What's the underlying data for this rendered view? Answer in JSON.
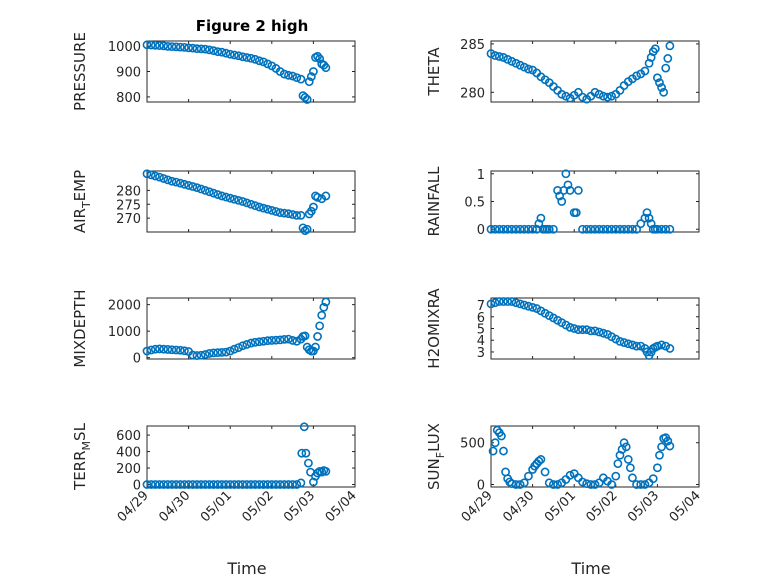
{
  "figure_title": "Figure 2 high",
  "marker_color": "#0072BD",
  "chart_data": [
    {
      "type": "scatter",
      "ylabel": "PRESSURE",
      "xlabel": "",
      "xlim": [
        0,
        5
      ],
      "xticks": [
        0,
        1,
        2,
        3,
        4,
        5
      ],
      "ylim": [
        780,
        1020
      ],
      "yticks": [
        800,
        900,
        1000
      ],
      "ytick_labels": [
        "800",
        "900",
        "1000"
      ],
      "x": [
        0,
        0.1,
        0.2,
        0.3,
        0.4,
        0.5,
        0.6,
        0.7,
        0.8,
        0.9,
        1.0,
        1.1,
        1.2,
        1.3,
        1.4,
        1.5,
        1.6,
        1.7,
        1.8,
        1.9,
        2.0,
        2.1,
        2.2,
        2.3,
        2.4,
        2.5,
        2.6,
        2.7,
        2.8,
        2.9,
        3.0,
        3.1,
        3.2,
        3.3,
        3.4,
        3.5,
        3.6,
        3.7,
        3.75,
        3.8,
        3.85,
        3.9,
        3.95,
        4.0,
        4.05,
        4.1,
        4.15,
        4.2,
        4.25,
        4.3
      ],
      "y": [
        1005,
        1004,
        1003,
        1002,
        1001,
        999,
        998,
        997,
        996,
        995,
        993,
        992,
        990,
        989,
        988,
        985,
        982,
        978,
        976,
        972,
        968,
        965,
        962,
        958,
        955,
        952,
        948,
        942,
        938,
        930,
        922,
        912,
        900,
        890,
        885,
        882,
        876,
        870,
        805,
        798,
        790,
        860,
        880,
        900,
        955,
        960,
        950,
        930,
        925,
        915
      ]
    },
    {
      "type": "scatter",
      "ylabel": "THETA",
      "xlabel": "",
      "xlim": [
        0,
        5
      ],
      "xticks": [
        0,
        1,
        2,
        3,
        4,
        5
      ],
      "ylim": [
        279,
        285.3
      ],
      "yticks": [
        280,
        285
      ],
      "ytick_labels": [
        "280",
        "285"
      ],
      "x": [
        0,
        0.1,
        0.2,
        0.3,
        0.4,
        0.5,
        0.6,
        0.7,
        0.8,
        0.9,
        1.0,
        1.1,
        1.2,
        1.3,
        1.4,
        1.5,
        1.6,
        1.7,
        1.8,
        1.9,
        2.0,
        2.1,
        2.2,
        2.3,
        2.4,
        2.5,
        2.6,
        2.7,
        2.8,
        2.9,
        3.0,
        3.1,
        3.2,
        3.3,
        3.4,
        3.5,
        3.6,
        3.7,
        3.8,
        3.85,
        3.9,
        3.95,
        4.0,
        4.05,
        4.1,
        4.15,
        4.2,
        4.25,
        4.3
      ],
      "y": [
        284.0,
        283.8,
        283.7,
        283.6,
        283.4,
        283.2,
        283.0,
        282.8,
        282.6,
        282.4,
        282.3,
        282.0,
        281.6,
        281.3,
        281.0,
        280.6,
        280.2,
        279.8,
        279.6,
        279.4,
        279.7,
        280.0,
        279.5,
        279.3,
        279.6,
        280.0,
        279.8,
        279.6,
        279.5,
        279.6,
        279.8,
        280.2,
        280.7,
        281.1,
        281.4,
        281.7,
        281.9,
        282.2,
        283.0,
        283.6,
        284.2,
        284.5,
        281.5,
        281.0,
        280.5,
        280.0,
        282.5,
        283.5,
        284.8
      ]
    },
    {
      "type": "scatter",
      "ylabel_main": "AIR",
      "ylabel_sub": "T",
      "ylabel_rest": "EMP",
      "xlabel": "",
      "xlim": [
        0,
        5
      ],
      "xticks": [
        0,
        1,
        2,
        3,
        4,
        5
      ],
      "ylim": [
        265,
        287
      ],
      "yticks": [
        270,
        275,
        280
      ],
      "ytick_labels": [
        "270",
        "275",
        "280"
      ],
      "x": [
        0,
        0.1,
        0.2,
        0.3,
        0.4,
        0.5,
        0.6,
        0.7,
        0.8,
        0.9,
        1.0,
        1.1,
        1.2,
        1.3,
        1.4,
        1.5,
        1.6,
        1.7,
        1.8,
        1.9,
        2.0,
        2.1,
        2.2,
        2.3,
        2.4,
        2.5,
        2.6,
        2.7,
        2.8,
        2.9,
        3.0,
        3.1,
        3.2,
        3.3,
        3.4,
        3.5,
        3.6,
        3.7,
        3.75,
        3.8,
        3.85,
        3.9,
        3.95,
        4.0,
        4.05,
        4.1,
        4.2,
        4.3
      ],
      "y": [
        286.0,
        285.6,
        285.2,
        284.8,
        284.3,
        283.8,
        283.3,
        283.0,
        282.6,
        282.2,
        281.8,
        281.4,
        281.0,
        280.5,
        280.0,
        279.5,
        279.0,
        278.5,
        278.0,
        277.6,
        277.2,
        276.8,
        276.4,
        276.0,
        275.5,
        275.0,
        274.5,
        274.0,
        273.6,
        273.2,
        272.8,
        272.4,
        272.0,
        271.8,
        271.6,
        271.3,
        271.0,
        271.0,
        266.5,
        265.5,
        266.0,
        271.5,
        272.5,
        274.0,
        278.0,
        277.5,
        277.0,
        278.0
      ]
    },
    {
      "type": "scatter",
      "ylabel": "RAINFALL",
      "xlabel": "",
      "xlim": [
        0,
        5
      ],
      "xticks": [
        0,
        1,
        2,
        3,
        4,
        5
      ],
      "ylim": [
        -0.05,
        1.05
      ],
      "yticks": [
        0,
        0.5,
        1
      ],
      "ytick_labels": [
        "0",
        "0.5",
        "1"
      ],
      "x": [
        0,
        0.1,
        0.2,
        0.3,
        0.4,
        0.5,
        0.6,
        0.7,
        0.8,
        0.9,
        1.0,
        1.1,
        1.15,
        1.2,
        1.25,
        1.3,
        1.35,
        1.4,
        1.5,
        1.6,
        1.65,
        1.7,
        1.75,
        1.8,
        1.85,
        1.9,
        2.0,
        2.05,
        2.1,
        2.2,
        2.3,
        2.4,
        2.5,
        2.6,
        2.7,
        2.8,
        2.9,
        3.0,
        3.1,
        3.2,
        3.3,
        3.4,
        3.5,
        3.6,
        3.7,
        3.75,
        3.8,
        3.85,
        3.9,
        3.95,
        4.0,
        4.1,
        4.2,
        4.3
      ],
      "y": [
        0,
        0,
        0,
        0,
        0,
        0,
        0,
        0,
        0,
        0,
        0,
        0,
        0.1,
        0.2,
        0,
        0,
        0,
        0,
        0,
        0.7,
        0.6,
        0.5,
        0.7,
        1.0,
        0.8,
        0.7,
        0.3,
        0.3,
        0.7,
        0,
        0,
        0,
        0,
        0,
        0,
        0,
        0,
        0,
        0,
        0,
        0,
        0,
        0,
        0.1,
        0.2,
        0.3,
        0.2,
        0.1,
        0,
        0,
        0,
        0,
        0,
        0
      ]
    },
    {
      "type": "scatter",
      "ylabel": "MIXDEPTH",
      "xlabel": "",
      "xlim": [
        0,
        5
      ],
      "xticks": [
        0,
        1,
        2,
        3,
        4,
        5
      ],
      "ylim": [
        -50,
        2250
      ],
      "yticks": [
        0,
        1000,
        2000
      ],
      "ytick_labels": [
        "0",
        "1000",
        "2000"
      ],
      "x": [
        0,
        0.1,
        0.2,
        0.3,
        0.4,
        0.5,
        0.6,
        0.7,
        0.8,
        0.9,
        1.0,
        1.1,
        1.2,
        1.3,
        1.4,
        1.5,
        1.6,
        1.7,
        1.8,
        1.9,
        2.0,
        2.1,
        2.2,
        2.3,
        2.4,
        2.5,
        2.6,
        2.7,
        2.8,
        2.9,
        3.0,
        3.1,
        3.2,
        3.3,
        3.4,
        3.5,
        3.6,
        3.7,
        3.75,
        3.8,
        3.85,
        3.9,
        3.95,
        4.0,
        4.05,
        4.1,
        4.15,
        4.2,
        4.25,
        4.3
      ],
      "y": [
        250,
        290,
        320,
        330,
        320,
        310,
        300,
        290,
        280,
        260,
        230,
        100,
        80,
        90,
        120,
        160,
        180,
        190,
        200,
        210,
        250,
        320,
        380,
        450,
        500,
        550,
        580,
        600,
        620,
        640,
        650,
        660,
        670,
        690,
        700,
        650,
        620,
        700,
        800,
        820,
        400,
        300,
        250,
        250,
        400,
        800,
        1200,
        1600,
        1900,
        2100
      ]
    },
    {
      "type": "scatter",
      "ylabel": "H2OMIXRA",
      "xlabel": "",
      "xlim": [
        0,
        5
      ],
      "xticks": [
        0,
        1,
        2,
        3,
        4,
        5
      ],
      "ylim": [
        2.4,
        7.6
      ],
      "yticks": [
        3,
        4,
        5,
        6,
        7
      ],
      "ytick_labels": [
        "3",
        "4",
        "5",
        "6",
        "7"
      ],
      "x": [
        0,
        0.1,
        0.2,
        0.3,
        0.4,
        0.5,
        0.6,
        0.7,
        0.8,
        0.9,
        1.0,
        1.1,
        1.2,
        1.3,
        1.4,
        1.5,
        1.6,
        1.7,
        1.8,
        1.9,
        2.0,
        2.1,
        2.2,
        2.3,
        2.4,
        2.5,
        2.6,
        2.7,
        2.8,
        2.9,
        3.0,
        3.1,
        3.2,
        3.3,
        3.4,
        3.5,
        3.6,
        3.7,
        3.75,
        3.8,
        3.85,
        3.9,
        3.95,
        4.0,
        4.1,
        4.2,
        4.3
      ],
      "y": [
        7.1,
        7.2,
        7.3,
        7.3,
        7.3,
        7.3,
        7.2,
        7.1,
        7.0,
        6.9,
        6.8,
        6.7,
        6.5,
        6.3,
        6.1,
        5.9,
        5.7,
        5.5,
        5.3,
        5.1,
        5.0,
        4.9,
        4.9,
        4.9,
        4.8,
        4.8,
        4.7,
        4.6,
        4.5,
        4.3,
        4.1,
        3.9,
        3.8,
        3.7,
        3.6,
        3.5,
        3.5,
        3.3,
        3.0,
        2.7,
        3.0,
        3.3,
        3.4,
        3.5,
        3.6,
        3.5,
        3.3
      ]
    },
    {
      "type": "scatter",
      "ylabel_main": "TERR",
      "ylabel_sub": "M",
      "ylabel_rest": "SL",
      "xlabel": "Time",
      "xlim": [
        0,
        5
      ],
      "xticks": [
        0,
        1,
        2,
        3,
        4,
        5
      ],
      "xtick_labels": [
        "04/29",
        "04/30",
        "05/01",
        "05/02",
        "05/03",
        "05/04"
      ],
      "ylim": [
        -30,
        710
      ],
      "yticks": [
        0,
        200,
        400,
        600
      ],
      "ytick_labels": [
        "0",
        "200",
        "400",
        "600"
      ],
      "x": [
        0,
        0.1,
        0.2,
        0.3,
        0.4,
        0.5,
        0.6,
        0.7,
        0.8,
        0.9,
        1.0,
        1.1,
        1.2,
        1.3,
        1.4,
        1.5,
        1.6,
        1.7,
        1.8,
        1.9,
        2.0,
        2.1,
        2.2,
        2.3,
        2.4,
        2.5,
        2.6,
        2.7,
        2.8,
        2.9,
        3.0,
        3.1,
        3.2,
        3.3,
        3.4,
        3.5,
        3.6,
        3.7,
        3.72,
        3.78,
        3.82,
        3.88,
        3.93,
        4.0,
        4.05,
        4.1,
        4.15,
        4.2,
        4.25,
        4.3
      ],
      "y": [
        0,
        0,
        0,
        0,
        0,
        0,
        0,
        0,
        0,
        0,
        0,
        0,
        0,
        0,
        0,
        0,
        0,
        0,
        0,
        0,
        0,
        0,
        0,
        0,
        0,
        0,
        0,
        0,
        0,
        0,
        0,
        0,
        0,
        0,
        0,
        0,
        0,
        20,
        380,
        700,
        380,
        260,
        150,
        30,
        100,
        140,
        160,
        150,
        170,
        160
      ]
    },
    {
      "type": "scatter",
      "ylabel_main": "SUN",
      "ylabel_sub": "F",
      "ylabel_rest": "LUX",
      "xlabel": "Time",
      "xlim": [
        0,
        5
      ],
      "xticks": [
        0,
        1,
        2,
        3,
        4,
        5
      ],
      "xtick_labels": [
        "04/29",
        "04/30",
        "05/01",
        "05/02",
        "05/03",
        "05/04"
      ],
      "ylim": [
        -30,
        700
      ],
      "yticks": [
        0,
        500
      ],
      "ytick_labels": [
        "0",
        "500"
      ],
      "x": [
        0.05,
        0.1,
        0.15,
        0.2,
        0.25,
        0.3,
        0.35,
        0.4,
        0.45,
        0.5,
        0.6,
        0.7,
        0.8,
        0.9,
        1.0,
        1.05,
        1.1,
        1.15,
        1.2,
        1.3,
        1.4,
        1.5,
        1.6,
        1.7,
        1.8,
        1.9,
        2.0,
        2.1,
        2.2,
        2.3,
        2.4,
        2.5,
        2.6,
        2.7,
        2.8,
        2.9,
        3.0,
        3.05,
        3.1,
        3.15,
        3.2,
        3.25,
        3.3,
        3.35,
        3.4,
        3.5,
        3.6,
        3.7,
        3.8,
        3.9,
        4.0,
        4.05,
        4.1,
        4.15,
        4.2,
        4.25,
        4.3
      ],
      "y": [
        400,
        500,
        650,
        620,
        580,
        400,
        150,
        70,
        30,
        10,
        0,
        0,
        20,
        100,
        180,
        220,
        250,
        280,
        300,
        150,
        20,
        0,
        0,
        20,
        60,
        110,
        130,
        80,
        30,
        10,
        0,
        0,
        20,
        80,
        40,
        0,
        100,
        250,
        350,
        420,
        500,
        450,
        300,
        200,
        80,
        0,
        0,
        0,
        20,
        70,
        200,
        350,
        450,
        550,
        560,
        520,
        460
      ]
    }
  ]
}
